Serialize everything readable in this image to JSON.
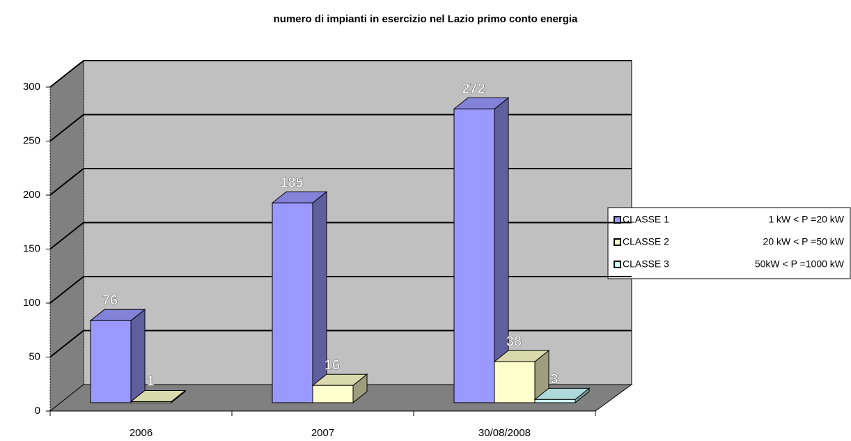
{
  "chart_data": {
    "type": "bar3d",
    "title": "numero di impianti in esercizio nel Lazio primo conto energia",
    "categories": [
      "2006",
      "2007",
      "30/08/2008"
    ],
    "series": [
      {
        "name": "CLASSE 1",
        "description": "1 kW < P =20 kW",
        "color": "#9999ff",
        "values": [
          76,
          185,
          272
        ]
      },
      {
        "name": "CLASSE 2",
        "description": "20 kW < P =50 kW",
        "color": "#ffffcc",
        "values": [
          1,
          16,
          38
        ]
      },
      {
        "name": "CLASSE 3",
        "description": "50kW < P =1000 kW",
        "color": "#ccffff",
        "values": [
          null,
          null,
          3
        ]
      }
    ],
    "ylim": [
      0,
      300
    ],
    "yticks": [
      0,
      50,
      100,
      150,
      200,
      250,
      300
    ],
    "grid": true,
    "legend": "right"
  }
}
